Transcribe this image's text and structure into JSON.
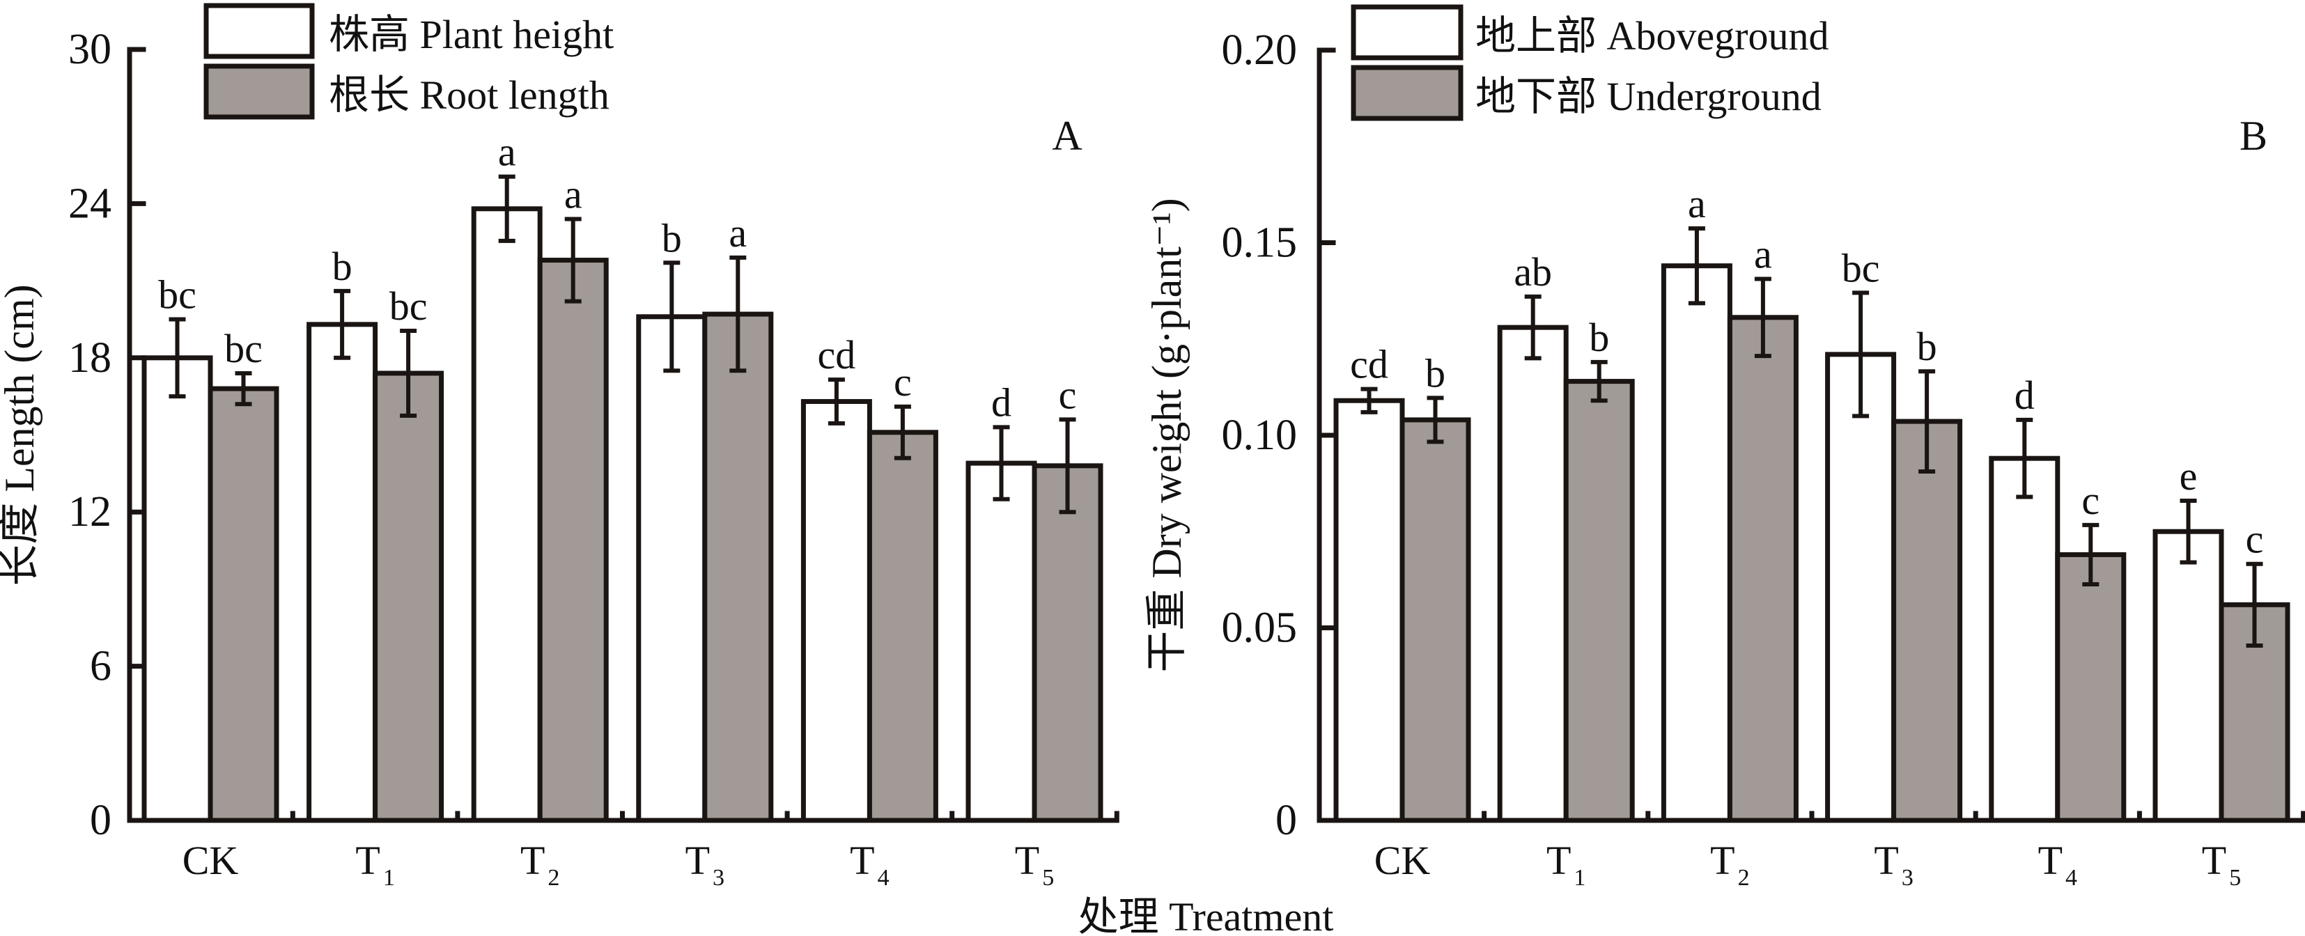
{
  "figure": {
    "shared_xlabel": "处理 Treatment",
    "colors": {
      "series1": "#ffffff",
      "series2": "#a19a96",
      "stroke": "#1a1512"
    }
  },
  "chart_data": [
    {
      "type": "bar",
      "panel_label": "A",
      "title": "",
      "xlabel": "处理 Treatment",
      "ylabel": "长度 Length (cm)",
      "ylim": [
        0,
        30
      ],
      "yticks": [
        0,
        6,
        12,
        18,
        24,
        30
      ],
      "grid": false,
      "legend_position": "top-left",
      "categories": [
        {
          "base": "CK",
          "sub": ""
        },
        {
          "base": "T",
          "sub": "1"
        },
        {
          "base": "T",
          "sub": "2"
        },
        {
          "base": "T",
          "sub": "3"
        },
        {
          "base": "T",
          "sub": "4"
        },
        {
          "base": "T",
          "sub": "5"
        }
      ],
      "series": [
        {
          "name": "株高 Plant height",
          "fill": "#ffffff",
          "values": [
            18.0,
            19.3,
            23.8,
            19.6,
            16.3,
            13.9
          ],
          "errors": [
            1.5,
            1.3,
            1.25,
            2.1,
            0.85,
            1.4
          ],
          "letters": [
            "bc",
            "b",
            "a",
            "b",
            "cd",
            "d"
          ]
        },
        {
          "name": "根长 Root length",
          "fill": "#a19a96",
          "values": [
            16.8,
            17.4,
            21.8,
            19.7,
            15.1,
            13.8
          ],
          "errors": [
            0.6,
            1.65,
            1.6,
            2.2,
            1.0,
            1.8
          ],
          "letters": [
            "bc",
            "bc",
            "a",
            "a",
            "c",
            "c"
          ]
        }
      ]
    },
    {
      "type": "bar",
      "panel_label": "B",
      "title": "",
      "xlabel": "处理 Treatment",
      "ylabel": "干重 Dry weight (g·plant⁻¹)",
      "ylim": [
        0,
        0.2
      ],
      "yticks": [
        "0",
        "0.05",
        "0.10",
        "0.15",
        "0.20"
      ],
      "grid": false,
      "legend_position": "top-left",
      "categories": [
        {
          "base": "CK",
          "sub": ""
        },
        {
          "base": "T",
          "sub": "1"
        },
        {
          "base": "T",
          "sub": "2"
        },
        {
          "base": "T",
          "sub": "3"
        },
        {
          "base": "T",
          "sub": "4"
        },
        {
          "base": "T",
          "sub": "5"
        }
      ],
      "series": [
        {
          "name": "地上部 Aboveground",
          "fill": "#ffffff",
          "values": [
            0.109,
            0.128,
            0.144,
            0.121,
            0.094,
            0.075
          ],
          "errors": [
            0.003,
            0.008,
            0.0097,
            0.016,
            0.01,
            0.008
          ],
          "letters": [
            "cd",
            "ab",
            "a",
            "bc",
            "d",
            "e"
          ]
        },
        {
          "name": "地下部 Underground",
          "fill": "#a19a96",
          "values": [
            0.104,
            0.114,
            0.1306,
            0.1036,
            0.069,
            0.056
          ],
          "errors": [
            0.0057,
            0.005,
            0.01,
            0.013,
            0.0077,
            0.0106
          ],
          "letters": [
            "b",
            "b",
            "a",
            "b",
            "c",
            "c"
          ]
        }
      ]
    }
  ]
}
